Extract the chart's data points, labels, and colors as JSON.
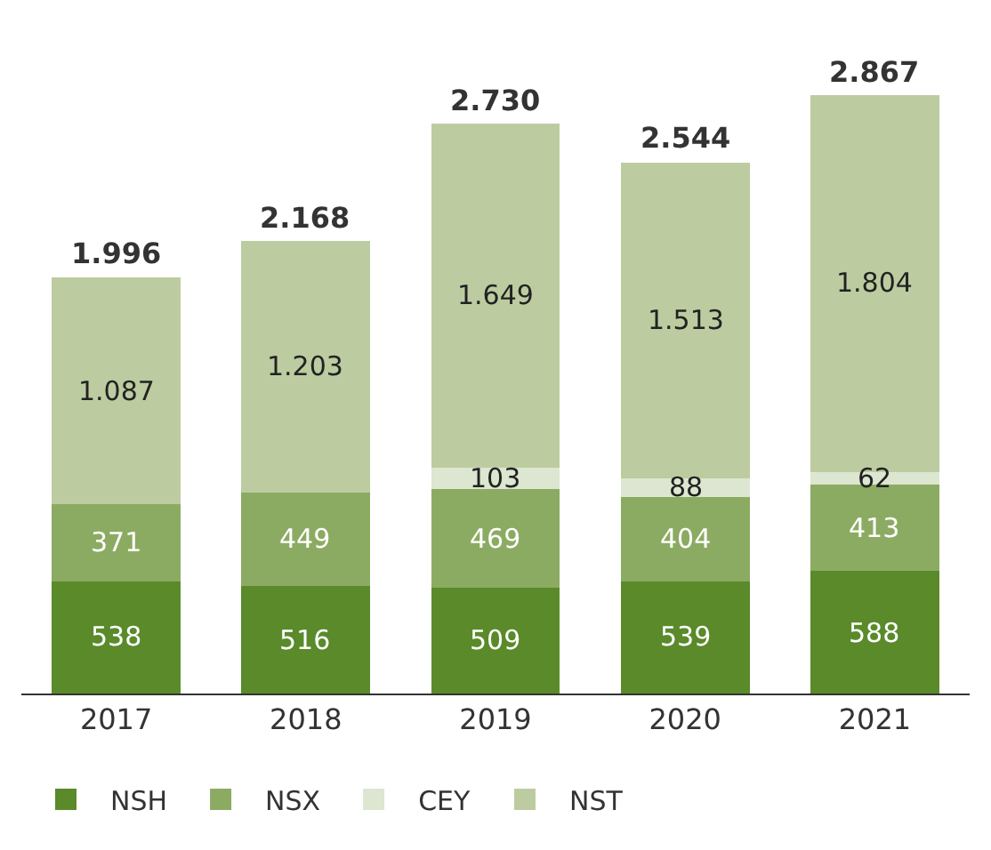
{
  "chart_data": {
    "type": "bar",
    "stacked": true,
    "legend": "bottom",
    "categories": [
      "2017",
      "2018",
      "2019",
      "2020",
      "2021"
    ],
    "series": [
      {
        "name": "NSH",
        "color": "#5a8a2a",
        "values": [
          538,
          516,
          509,
          539,
          588
        ],
        "value_labels": [
          "538",
          "516",
          "509",
          "539",
          "588"
        ]
      },
      {
        "name": "NSX",
        "color": "#8cab62",
        "values": [
          371,
          449,
          469,
          404,
          413
        ],
        "value_labels": [
          "371",
          "449",
          "469",
          "404",
          "413"
        ]
      },
      {
        "name": "CEY",
        "color": "#dde6d0",
        "values": [
          null,
          null,
          103,
          88,
          62
        ],
        "value_labels": [
          null,
          null,
          "103",
          "88",
          "62"
        ]
      },
      {
        "name": "NST",
        "color": "#bccca0",
        "values": [
          1087,
          1203,
          1649,
          1513,
          1804
        ],
        "value_labels": [
          "1.087",
          "1.203",
          "1.649",
          "1.513",
          "1.804"
        ]
      }
    ],
    "totals": [
      "1.996",
      "2.168",
      "2.730",
      "2.544",
      "2.867"
    ]
  }
}
